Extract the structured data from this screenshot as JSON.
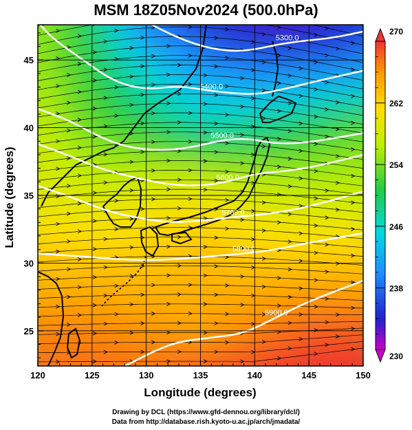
{
  "title": "MSM 18Z05Nov2024 (500.0hPa)",
  "credits": {
    "line1": "Drawing by DCL (https://www.gfd-dennou.org/library/dcl/)",
    "line2": "Data from http://database.rish.kyoto-u.ac.jp/arch/jmadata/"
  },
  "chart_data": {
    "type": "heatmap",
    "title": "MSM 18Z05Nov2024 (500.0hPa)",
    "xlabel": "Longitude (degrees)",
    "ylabel": "Latitude  (degrees)",
    "xlim": [
      120,
      150
    ],
    "ylim": [
      22.4,
      47.6
    ],
    "x_ticks": [
      "120",
      "125",
      "130",
      "135",
      "140",
      "145",
      "150"
    ],
    "y_ticks": [
      "25",
      "30",
      "35",
      "40",
      "45"
    ],
    "grid": true,
    "colorbar": {
      "range": [
        230,
        270
      ],
      "ticks": [
        "230",
        "238",
        "246",
        "254",
        "262",
        "270"
      ],
      "placement": "right",
      "colors": [
        "#cc00cc",
        "#2222cc",
        "#1e90ff",
        "#00d8e0",
        "#22cc44",
        "#bbee00",
        "#ffe000",
        "#ff9900",
        "#ee3333"
      ]
    },
    "contours": [
      {
        "label": "5300.0",
        "points": [
          [
            130.5,
            47.6
          ],
          [
            133,
            46.6
          ],
          [
            136,
            45.8
          ],
          [
            139,
            45.6
          ],
          [
            143,
            46.3
          ],
          [
            147,
            46.6
          ],
          [
            150,
            47.1
          ]
        ]
      },
      {
        "label": "5400.0",
        "points": [
          [
            120.2,
            47.6
          ],
          [
            121.5,
            46.5
          ],
          [
            124,
            45.1
          ],
          [
            127,
            43.4
          ],
          [
            130,
            42.8
          ],
          [
            133,
            43.1
          ],
          [
            136,
            42.7
          ],
          [
            140,
            42.4
          ],
          [
            143,
            42.9
          ],
          [
            146,
            43.5
          ],
          [
            150,
            44.2
          ]
        ]
      },
      {
        "label": "5500.0",
        "points": [
          [
            120,
            41.4
          ],
          [
            123,
            40.5
          ],
          [
            125.5,
            39.4
          ],
          [
            128,
            38.6
          ],
          [
            131,
            38.3
          ],
          [
            134,
            38.5
          ],
          [
            137,
            39.1
          ],
          [
            139.5,
            39.2
          ],
          [
            142,
            38.8
          ],
          [
            145,
            38.9
          ],
          [
            150,
            39.6
          ]
        ]
      },
      {
        "label": "5600.0",
        "points": [
          [
            120,
            38.8
          ],
          [
            123,
            37.9
          ],
          [
            126,
            36.9
          ],
          [
            129,
            36.3
          ],
          [
            132,
            35.8
          ],
          [
            135,
            35.7
          ],
          [
            137.5,
            36.0
          ],
          [
            140,
            36.6
          ],
          [
            143,
            36.8
          ],
          [
            146,
            37.2
          ],
          [
            150,
            38.0
          ]
        ]
      },
      {
        "label": "5700.0",
        "points": [
          [
            120,
            35.7
          ],
          [
            123,
            34.9
          ],
          [
            126.5,
            33.8
          ],
          [
            129.5,
            33.3
          ],
          [
            132,
            33.0
          ],
          [
            135,
            33.1
          ],
          [
            138,
            33.4
          ],
          [
            141,
            33.6
          ],
          [
            144,
            34.0
          ],
          [
            147,
            34.6
          ],
          [
            150,
            35.3
          ]
        ]
      },
      {
        "label": "5800.0",
        "points": [
          [
            120,
            30.7
          ],
          [
            124,
            30.5
          ],
          [
            127,
            30.3
          ],
          [
            130,
            30.2
          ],
          [
            133,
            30.3
          ],
          [
            136,
            30.5
          ],
          [
            139,
            30.7
          ],
          [
            142,
            31.0
          ],
          [
            145,
            31.5
          ],
          [
            150,
            32.2
          ]
        ]
      },
      {
        "label": "5900.0",
        "points": [
          [
            128,
            22.4
          ],
          [
            129.5,
            23.0
          ],
          [
            131,
            23.6
          ],
          [
            133,
            24.2
          ],
          [
            136,
            24.5
          ],
          [
            139,
            24.8
          ],
          [
            142,
            26.0
          ],
          [
            144.5,
            27.0
          ],
          [
            147,
            27.8
          ],
          [
            150,
            28.7
          ]
        ]
      }
    ],
    "temperature_field_K": {
      "lon": [
        120,
        125,
        130,
        135,
        140,
        145,
        150
      ],
      "lat": [
        22.4,
        25,
        30,
        35,
        40,
        45,
        47.6
      ],
      "values": [
        [
          267,
          267,
          267,
          268,
          269,
          270,
          270
        ],
        [
          266,
          266,
          265,
          264,
          266,
          268,
          268
        ],
        [
          262,
          262,
          262,
          263,
          262,
          262,
          262
        ],
        [
          258,
          257,
          258,
          259,
          257,
          256,
          256
        ],
        [
          256,
          252,
          250,
          247,
          248,
          250,
          252
        ],
        [
          254,
          250,
          244,
          240,
          238,
          238,
          239
        ],
        [
          254,
          249,
          239,
          236,
          234,
          234,
          236
        ]
      ]
    }
  }
}
